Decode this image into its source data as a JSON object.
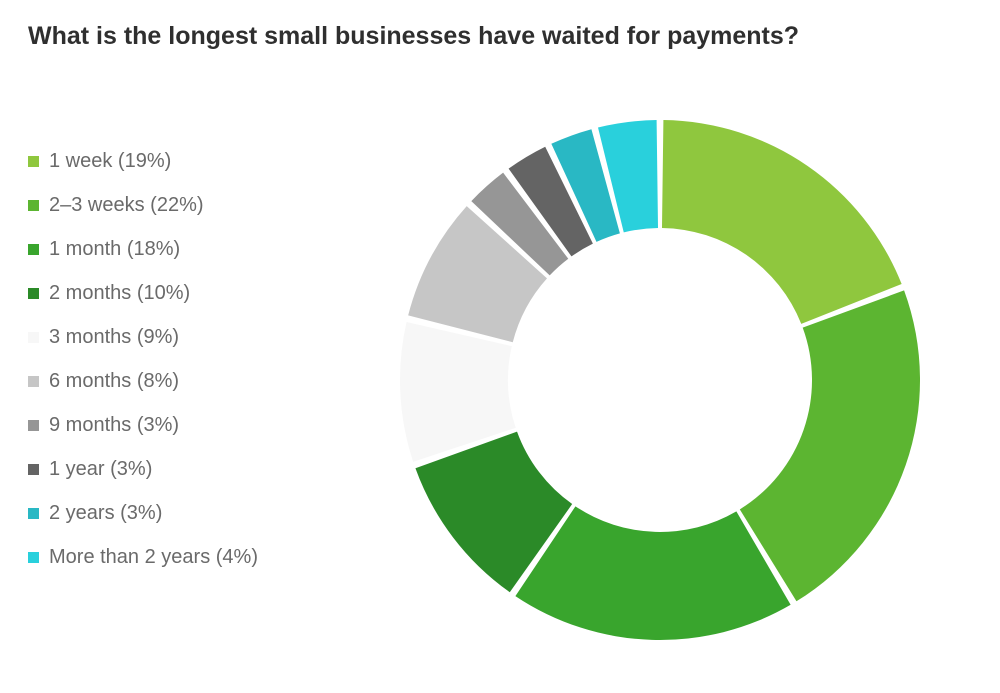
{
  "chart": {
    "type": "donut",
    "title": "What is the longest small businesses have waited for payments?",
    "title_fontsize": 25,
    "title_fontweight": 600,
    "title_color": "#2f2f2f",
    "legend_fontsize": 20,
    "legend_color": "#6a6a6a",
    "background_color": "#ffffff",
    "outer_radius": 260,
    "inner_radius": 152,
    "gap_deg": 1.5,
    "start_angle_deg": 0,
    "slices": [
      {
        "label": "1 week",
        "percent": 19,
        "color": "#8fc73e",
        "legend": "1 week (19%)"
      },
      {
        "label": "2–3 weeks",
        "percent": 22,
        "color": "#5cb531",
        "legend": "2–3 weeks (22%)"
      },
      {
        "label": "1 month",
        "percent": 18,
        "color": "#39a52d",
        "legend": "1 month (18%)"
      },
      {
        "label": "2 months",
        "percent": 10,
        "color": "#2b8a28",
        "legend": "2 months (10%)"
      },
      {
        "label": "3 months",
        "percent": 9,
        "color": "#f7f7f7",
        "legend": "3 months (9%)"
      },
      {
        "label": "6 months",
        "percent": 8,
        "color": "#c6c6c6",
        "legend": "6 months (8%)"
      },
      {
        "label": "9 months",
        "percent": 3,
        "color": "#969696",
        "legend": "9 months (3%)"
      },
      {
        "label": "1 year",
        "percent": 3,
        "color": "#646464",
        "legend": "1 year (3%)"
      },
      {
        "label": "2 years",
        "percent": 3,
        "color": "#29b8c4",
        "legend": "2 years (3%)"
      },
      {
        "label": "More than 2 years",
        "percent": 4,
        "color": "#29d0dc",
        "legend": "More than 2 years (4%)"
      }
    ]
  }
}
